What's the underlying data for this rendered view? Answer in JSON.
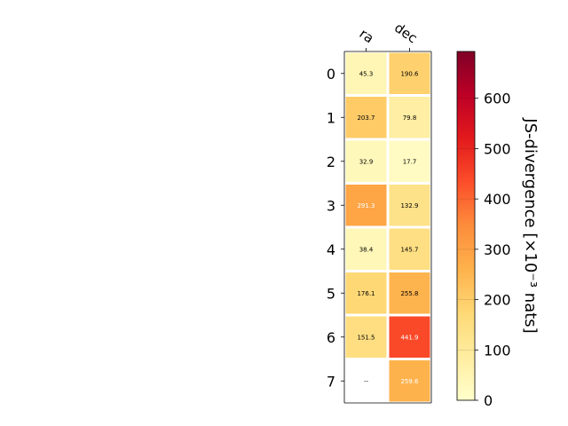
{
  "chart_data": {
    "type": "heatmap",
    "columns": [
      "ra",
      "dec"
    ],
    "rows": [
      "0",
      "1",
      "2",
      "3",
      "4",
      "5",
      "6",
      "7"
    ],
    "values": [
      [
        45.3,
        190.6
      ],
      [
        203.7,
        79.8
      ],
      [
        32.9,
        17.7
      ],
      [
        291.3,
        132.9
      ],
      [
        38.4,
        145.7
      ],
      [
        176.1,
        255.8
      ],
      [
        151.5,
        441.9
      ],
      [
        null,
        259.6
      ]
    ],
    "cell_labels": [
      [
        "45.3",
        "190.6"
      ],
      [
        "203.7",
        "79.8"
      ],
      [
        "32.9",
        "17.7"
      ],
      [
        "291.3",
        "132.9"
      ],
      [
        "38.4",
        "145.7"
      ],
      [
        "176.1",
        "255.8"
      ],
      [
        "151.5",
        "441.9"
      ],
      [
        "--",
        "259.6"
      ]
    ],
    "colorbar": {
      "label": "JS-divergence [×10⁻³ nats]",
      "range": [
        0,
        693
      ],
      "ticks": [
        0,
        100,
        200,
        300,
        400,
        500,
        600
      ],
      "tick_labels": [
        "0",
        "100",
        "200",
        "300",
        "400",
        "500",
        "600"
      ],
      "colormap": "YlOrRd"
    },
    "xlabel": "",
    "ylabel": "",
    "title": ""
  }
}
